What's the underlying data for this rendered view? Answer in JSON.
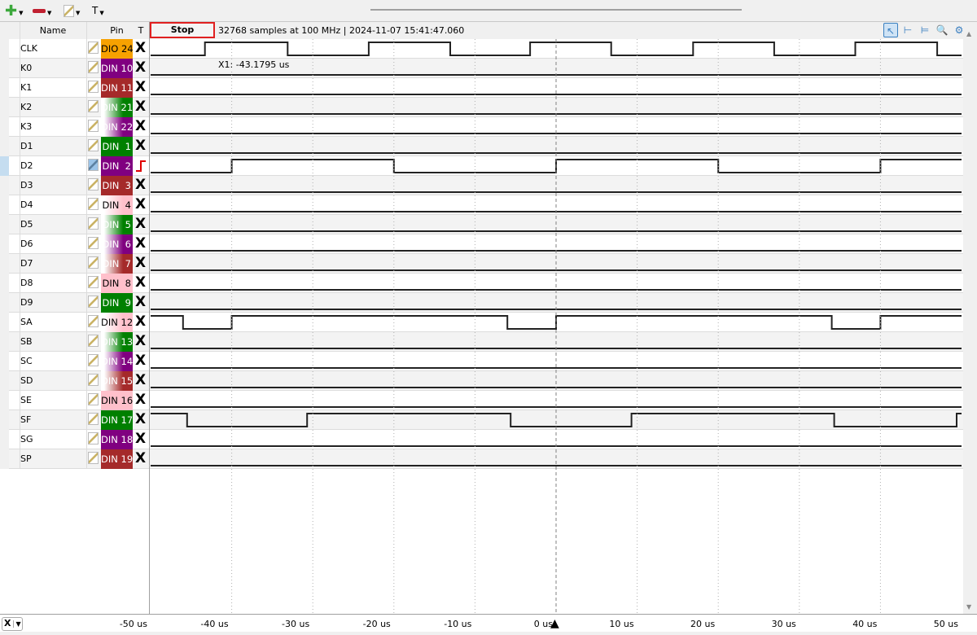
{
  "toolbar": {
    "add_icon": "plus-icon",
    "remove_icon": "minus-icon",
    "edit_icon": "pencil-icon",
    "text_label": "T"
  },
  "header": {
    "name_col": "Name",
    "pin_col": "Pin",
    "trigger_col": "T",
    "stop_label": "Stop",
    "status": "32768 samples at 100 MHz | 2024-11-07 15:41:47.060"
  },
  "view_tools": [
    "pointer-icon",
    "cursor-icon",
    "cursor-pair-icon",
    "zoom-icon",
    "settings-icon"
  ],
  "cursor": {
    "label": "X1: -43.1795 us",
    "marker_time_us": 0,
    "line_color": "#808080"
  },
  "colors": {
    "orange": "#f7a100",
    "purple": "#800080",
    "brown": "#a52a2a",
    "green": "#008000",
    "pink": "#ffc0cb",
    "trigger_edge": "#e00000"
  },
  "signals": [
    {
      "name": "CLK",
      "pin": "DIO 24",
      "color": "orange",
      "fill": "solid",
      "trigger": "X",
      "initial": 0,
      "edges_us": [
        -43.3,
        -33.1,
        -23.1,
        -13.05,
        -3.2,
        6.8,
        16.9,
        26.9,
        36.9,
        47.0
      ]
    },
    {
      "name": "K0",
      "pin": "DIN 10",
      "color": "purple",
      "fill": "solid",
      "trigger": "X",
      "initial": 0,
      "edges_us": []
    },
    {
      "name": "K1",
      "pin": "DIN 11",
      "color": "brown",
      "fill": "solid",
      "trigger": "X",
      "initial": 0,
      "edges_us": []
    },
    {
      "name": "K2",
      "pin": "DIN 21",
      "color": "green",
      "fill": "gradient",
      "trigger": "X",
      "initial": 0,
      "edges_us": []
    },
    {
      "name": "K3",
      "pin": "DIN 22",
      "color": "purple",
      "fill": "gradient",
      "trigger": "X",
      "initial": 0,
      "edges_us": []
    },
    {
      "name": "D1",
      "pin": "DIN  1",
      "color": "green",
      "fill": "solid",
      "trigger": "X",
      "initial": 0,
      "edges_us": []
    },
    {
      "name": "D2",
      "pin": "DIN  2",
      "color": "purple",
      "fill": "solid",
      "trigger": "rising",
      "initial": 0,
      "selected": true,
      "edges_us": [
        -40,
        -20,
        0,
        20,
        40
      ]
    },
    {
      "name": "D3",
      "pin": "DIN  3",
      "color": "brown",
      "fill": "solid",
      "trigger": "X",
      "initial": 0,
      "edges_us": []
    },
    {
      "name": "D4",
      "pin": "DIN  4",
      "color": "pink",
      "fill": "gradient",
      "trigger": "X",
      "initial": 0,
      "edges_us": []
    },
    {
      "name": "D5",
      "pin": "DIN  5",
      "color": "green",
      "fill": "gradient",
      "trigger": "X",
      "initial": 0,
      "edges_us": []
    },
    {
      "name": "D6",
      "pin": "DIN  6",
      "color": "purple",
      "fill": "gradient",
      "trigger": "X",
      "initial": 0,
      "edges_us": []
    },
    {
      "name": "D7",
      "pin": "DIN  7",
      "color": "brown",
      "fill": "gradient",
      "trigger": "X",
      "initial": 0,
      "edges_us": []
    },
    {
      "name": "D8",
      "pin": "DIN  8",
      "color": "pink",
      "fill": "solid",
      "trigger": "X",
      "initial": 0,
      "edges_us": []
    },
    {
      "name": "D9",
      "pin": "DIN  9",
      "color": "green",
      "fill": "solid",
      "trigger": "X",
      "initial": 0,
      "edges_us": []
    },
    {
      "name": "SA",
      "pin": "DIN 12",
      "color": "pink",
      "fill": "gradient",
      "trigger": "X",
      "initial": 1,
      "edges_us": [
        -46,
        -40,
        -6,
        0,
        34,
        40
      ]
    },
    {
      "name": "SB",
      "pin": "DIN 13",
      "color": "green",
      "fill": "gradient",
      "trigger": "X",
      "initial": 0,
      "edges_us": []
    },
    {
      "name": "SC",
      "pin": "DIN 14",
      "color": "purple",
      "fill": "gradient",
      "trigger": "X",
      "initial": 0,
      "edges_us": []
    },
    {
      "name": "SD",
      "pin": "DIN 15",
      "color": "brown",
      "fill": "gradient",
      "trigger": "X",
      "initial": 0,
      "edges_us": []
    },
    {
      "name": "SE",
      "pin": "DIN 16",
      "color": "pink",
      "fill": "solid",
      "trigger": "X",
      "initial": 0,
      "edges_us": []
    },
    {
      "name": "SF",
      "pin": "DIN 17",
      "color": "green",
      "fill": "solid",
      "trigger": "X",
      "initial": 1,
      "edges_us": [
        -45.5,
        -30.7,
        -5.6,
        9.3,
        34.3,
        49.4
      ]
    },
    {
      "name": "SG",
      "pin": "DIN 18",
      "color": "purple",
      "fill": "solid",
      "trigger": "X",
      "initial": 0,
      "edges_us": []
    },
    {
      "name": "SP",
      "pin": "DIN 19",
      "color": "brown",
      "fill": "solid",
      "trigger": "X",
      "initial": 0,
      "edges_us": []
    }
  ],
  "axis": {
    "range_us": [
      -50,
      50
    ],
    "ticks": [
      "-50 us",
      "-40 us",
      "-30 us",
      "-20 us",
      "-10 us",
      "0 us",
      "10 us",
      "20 us",
      "30 us",
      "40 us",
      "50 us"
    ],
    "tick_values": [
      -50,
      -40,
      -30,
      -20,
      -10,
      0,
      10,
      20,
      30,
      40,
      50
    ],
    "selector": "X"
  }
}
